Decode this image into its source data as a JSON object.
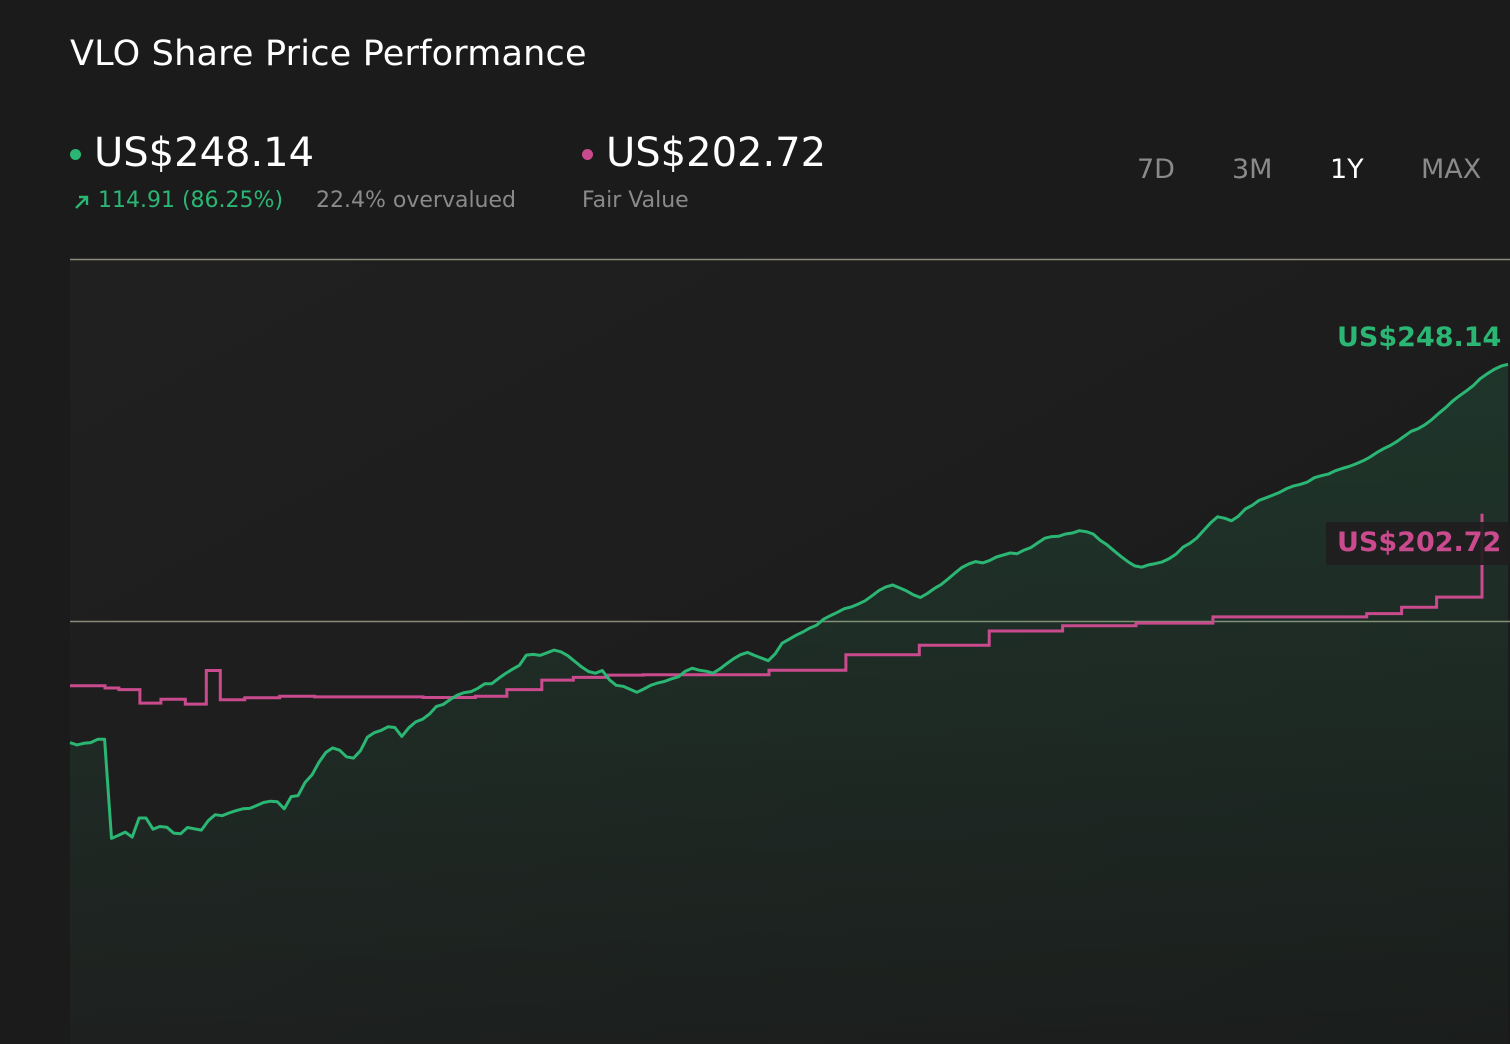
{
  "title": "VLO Share Price Performance",
  "price": {
    "value": "US$248.14",
    "change": "114.91 (86.25%)",
    "valuation": "22.4% overvalued"
  },
  "fair_value": {
    "value": "US$202.72",
    "label": "Fair Value"
  },
  "ranges": [
    "7D",
    "3M",
    "1Y",
    "MAX"
  ],
  "active_range": "1Y",
  "colors": {
    "price": "#2bb673",
    "fair_value": "#c94b8e",
    "background": "#1b1b1b",
    "gridline": "#8c8a78"
  },
  "chart_data": {
    "type": "line",
    "reference_lines": [
      "top",
      "middle"
    ],
    "series": [
      {
        "id": "price",
        "end_label": "US$248.14",
        "values": [
          133.2,
          132.5,
          133,
          133.2,
          134.2,
          134.2,
          104.1,
          105,
          106,
          104.5,
          110.3,
          110.3,
          106.9,
          107.7,
          107.5,
          105.7,
          105.5,
          107.4,
          107,
          106.6,
          109.5,
          111.3,
          111,
          111.8,
          112.5,
          113.1,
          113.2,
          114.1,
          115,
          115.4,
          115.2,
          113.1,
          116.8,
          117.1,
          121.1,
          123.4,
          127.2,
          130.2,
          131.6,
          130.9,
          128.9,
          128.5,
          130.7,
          134.8,
          136.2,
          136.9,
          138,
          137.8,
          135.1,
          137.7,
          139.5,
          140.3,
          141.9,
          144.2,
          144.8,
          146.3,
          147.6,
          148.4,
          148.7,
          149.7,
          151.1,
          151.1,
          152.7,
          154.2,
          155.5,
          156.7,
          159.8,
          160,
          159.7,
          160.5,
          161.3,
          160.8,
          159.6,
          157.9,
          156.2,
          154.8,
          154.3,
          155.1,
          152.3,
          150.6,
          150.3,
          149.4,
          148.5,
          149.5,
          150.6,
          151.3,
          151.8,
          152.6,
          153.2,
          154.9,
          155.8,
          155.2,
          154.9,
          154.3,
          155.6,
          157.2,
          158.7,
          159.9,
          160.6,
          159.7,
          158.9,
          158.1,
          160.2,
          163.4,
          164.6,
          165.8,
          166.8,
          168,
          168.9,
          170.7,
          171.8,
          172.8,
          173.9,
          174.4,
          175.3,
          176.3,
          177.8,
          179.4,
          180.5,
          181.1,
          180.2,
          179.3,
          178.1,
          177.3,
          178.5,
          180,
          181.2,
          182.9,
          184.7,
          186.4,
          187.5,
          188.2,
          187.8,
          188.5,
          189.6,
          190.2,
          190.8,
          190.6,
          191.7,
          192.5,
          193.9,
          195.3,
          195.8,
          195.9,
          196.6,
          196.9,
          197.6,
          197.3,
          196.6,
          194.7,
          193.3,
          191.5,
          189.8,
          188.2,
          186.9,
          186.5,
          187.2,
          187.6,
          188.1,
          189.1,
          190.5,
          192.6,
          193.8,
          195.4,
          197.7,
          200,
          201.8,
          201.4,
          200.6,
          202,
          204.2,
          205.3,
          206.8,
          207.6,
          208.4,
          209.3,
          210.4,
          211.2,
          211.7,
          212.4,
          213.7,
          214.3,
          214.8,
          215.8,
          216.5,
          217.1,
          217.9,
          218.8,
          219.9,
          221.3,
          222.5,
          223.5,
          224.8,
          226.3,
          227.8,
          228.6,
          229.8,
          231.4,
          233.3,
          235,
          237,
          238.6,
          240.1,
          241.7,
          243.8,
          245.3,
          246.6,
          247.6,
          248.14
        ]
      },
      {
        "id": "fair_value",
        "end_label": "US$202.72",
        "values": [
          150.5,
          150.5,
          150.5,
          150.5,
          150.5,
          150.5,
          150.5,
          150.5,
          150.5,
          150.5,
          149.8,
          149.8,
          149.8,
          149.8,
          149.3,
          149.3,
          149.3,
          149.3,
          149.3,
          149.3,
          145.2,
          145.2,
          145.2,
          145.2,
          145.2,
          145.2,
          146.4,
          146.4,
          146.4,
          146.4,
          146.4,
          146.4,
          146.4,
          144.9,
          144.9,
          144.9,
          144.9,
          144.9,
          144.9,
          155.1,
          155.1,
          155.1,
          155.1,
          146.2,
          146.2,
          146.2,
          146.2,
          146.2,
          146.2,
          146.2,
          146.8,
          146.8,
          146.8,
          146.8,
          146.8,
          146.8,
          146.8,
          146.8,
          146.8,
          146.8,
          147.3,
          147.3,
          147.3,
          147.3,
          147.3,
          147.3,
          147.3,
          147.3,
          147.3,
          147.3,
          147.1,
          147.1,
          147.1,
          147.1,
          147.1,
          147.1,
          147.1,
          147.1,
          147.1,
          147.1,
          147.1,
          147.1,
          147.1,
          147.1,
          147.1,
          147.1,
          147.1,
          147.1,
          147.1,
          147.1,
          147.1,
          147.1,
          147.1,
          147.1,
          147.1,
          147.1,
          147.1,
          147.1,
          147.1,
          147.1,
          147.1,
          146.9,
          146.9,
          146.9,
          146.9,
          146.9,
          146.9,
          146.9,
          146.9,
          146.9,
          146.9,
          146.9,
          146.9,
          146.9,
          146.9,
          146.9,
          147.3,
          147.3,
          147.3,
          147.3,
          147.3,
          147.3,
          147.3,
          147.3,
          147.3,
          149.3,
          149.3,
          149.3,
          149.3,
          149.3,
          149.3,
          149.3,
          149.3,
          149.3,
          149.3,
          152.2,
          152.2,
          152.2,
          152.2,
          152.2,
          152.2,
          152.2,
          152.2,
          152.2,
          153,
          153,
          153,
          153,
          153,
          153,
          153,
          153,
          153,
          153,
          153.7,
          153.7,
          153.7,
          153.7,
          153.7,
          153.7,
          153.7,
          153.7,
          153.7,
          153.7,
          153.8,
          153.8,
          153.8,
          153.8,
          153.8,
          153.8,
          153.8,
          153.8,
          153.8,
          153.8,
          153.8,
          153.8,
          153.8,
          153.8,
          153.8,
          153.8,
          153.8,
          153.8,
          153.8,
          153.8,
          153.8,
          153.8,
          153.8,
          153.8,
          153.8,
          153.8,
          153.8,
          153.8,
          153.8,
          153.8,
          153.8,
          153.8,
          153.8,
          153.8,
          153.8,
          153.8,
          155.2,
          155.2,
          155.2,
          155.2,
          155.2,
          155.2,
          155.2,
          155.2,
          155.2,
          155.2,
          155.2,
          155.2,
          155.2,
          155.2,
          155.2,
          155.2,
          155.2,
          155.2,
          155.2,
          155.2,
          155.2,
          155.2,
          159.9,
          159.9,
          159.9,
          159.9,
          159.9,
          159.9,
          159.9,
          159.9,
          159.9,
          159.9,
          159.9,
          159.9,
          159.9,
          159.9,
          159.9,
          159.9,
          159.9,
          159.9,
          159.9,
          159.9,
          159.9,
          162.8,
          162.8,
          162.8,
          162.8,
          162.8,
          162.8,
          162.8,
          162.8,
          162.8,
          162.8,
          162.8,
          162.8,
          162.8,
          162.8,
          162.8,
          162.8,
          162.8,
          162.8,
          162.8,
          162.8,
          167.1,
          167.1,
          167.1,
          167.1,
          167.1,
          167.1,
          167.1,
          167.1,
          167.1,
          167.1,
          167.1,
          167.1,
          167.1,
          167.1,
          167.1,
          167.1,
          167.1,
          167.1,
          167.1,
          167.1,
          167.1,
          168.7,
          168.7,
          168.7,
          168.7,
          168.7,
          168.7,
          168.7,
          168.7,
          168.7,
          168.7,
          168.7,
          168.7,
          168.7,
          168.7,
          168.7,
          168.7,
          168.7,
          168.7,
          168.7,
          168.7,
          168.7,
          169.5,
          169.5,
          169.5,
          169.5,
          169.5,
          169.5,
          169.5,
          169.5,
          169.5,
          169.5,
          169.5,
          169.5,
          169.5,
          169.5,
          169.5,
          169.5,
          169.5,
          169.5,
          169.5,
          169.5,
          169.5,
          169.5,
          171.4,
          171.4,
          171.4,
          171.4,
          171.4,
          171.4,
          171.4,
          171.4,
          171.4,
          171.4,
          171.4,
          171.4,
          171.4,
          171.4,
          171.4,
          171.4,
          171.4,
          171.4,
          171.4,
          171.4,
          171.4,
          171.4,
          171.4,
          171.4,
          171.4,
          171.4,
          171.4,
          171.4,
          171.4,
          171.4,
          171.4,
          171.4,
          171.4,
          171.4,
          171.4,
          171.4,
          171.4,
          171.4,
          171.4,
          171.4,
          171.4,
          171.4,
          171.4,
          171.4,
          172.4,
          172.4,
          172.4,
          172.4,
          172.4,
          172.4,
          172.4,
          172.4,
          172.4,
          172.4,
          174.3,
          174.3,
          174.3,
          174.3,
          174.3,
          174.3,
          174.3,
          174.3,
          174.3,
          174.3,
          177.4,
          177.4,
          177.4,
          177.4,
          177.4,
          177.4,
          177.4,
          177.4,
          177.4,
          177.4,
          177.4,
          177.4,
          177.4,
          202.72
        ]
      }
    ]
  }
}
